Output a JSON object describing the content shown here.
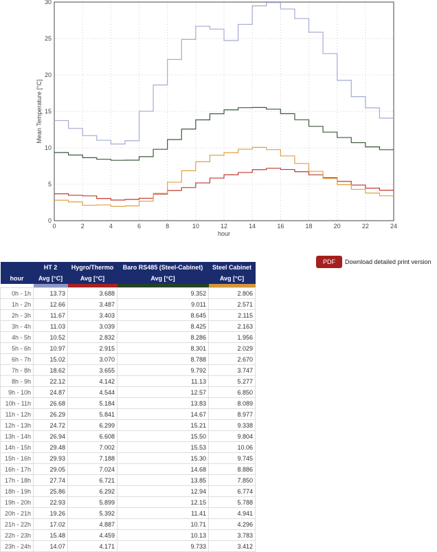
{
  "chart_data": {
    "type": "line",
    "step": true,
    "xlabel": "hour",
    "ylabel": "Mean Temperature [°C]",
    "xlim": [
      0,
      24
    ],
    "ylim": [
      0,
      30
    ],
    "xticks": [
      0,
      2,
      4,
      6,
      8,
      10,
      12,
      14,
      16,
      18,
      20,
      22,
      24
    ],
    "yticks": [
      0,
      5,
      10,
      15,
      20,
      25,
      30
    ],
    "grid": true,
    "series": [
      {
        "name": "HT 2",
        "color": "#a3abd3",
        "values": [
          13.73,
          12.66,
          11.67,
          11.03,
          10.52,
          10.97,
          15.02,
          18.62,
          22.12,
          24.87,
          26.68,
          26.29,
          24.72,
          26.94,
          29.48,
          29.93,
          29.05,
          27.74,
          25.86,
          22.93,
          19.26,
          17.02,
          15.48,
          14.07
        ]
      },
      {
        "name": "Hygro/Thermo",
        "color": "#c0392b",
        "values": [
          3.688,
          3.487,
          3.403,
          3.039,
          2.832,
          2.915,
          3.07,
          3.655,
          4.142,
          4.544,
          5.184,
          5.841,
          6.299,
          6.608,
          7.002,
          7.188,
          7.024,
          6.721,
          6.292,
          5.899,
          5.392,
          4.887,
          4.459,
          4.171
        ]
      },
      {
        "name": "Baro RS485 (Steel-Cabinet)",
        "color": "#3a5a3a",
        "values": [
          9.352,
          9.011,
          8.645,
          8.425,
          8.286,
          8.301,
          8.788,
          9.792,
          11.13,
          12.57,
          13.83,
          14.67,
          15.21,
          15.5,
          15.53,
          15.3,
          14.68,
          13.85,
          12.94,
          12.15,
          11.41,
          10.71,
          10.13,
          9.733
        ]
      },
      {
        "name": "Steel Cabinet",
        "color": "#e0a040",
        "values": [
          2.806,
          2.571,
          2.115,
          2.163,
          1.956,
          2.029,
          2.67,
          3.747,
          5.277,
          6.85,
          8.089,
          8.977,
          9.338,
          9.804,
          10.06,
          9.745,
          8.886,
          7.85,
          6.774,
          5.788,
          4.941,
          4.296,
          3.783,
          3.412
        ]
      }
    ]
  },
  "pdf": {
    "button": "PDF",
    "label": "Download detailed print version"
  },
  "table": {
    "hour_header": "hour",
    "columns": [
      {
        "name": "HT 2",
        "unit": "Avg [°C]",
        "color": "#8b96c2"
      },
      {
        "name": "Hygro/Thermo",
        "unit": "Avg [°C]",
        "color": "#a82020"
      },
      {
        "name": "Baro RS485 (Steel-Cabinet)",
        "unit": "Avg [°C]",
        "color": "#244324"
      },
      {
        "name": "Steel Cabinet",
        "unit": "Avg [°C]",
        "color": "#d4963a"
      }
    ],
    "rows": [
      [
        "0h - 1h",
        "13.73",
        "3.688",
        "9.352",
        "2.806"
      ],
      [
        "1h - 2h",
        "12.66",
        "3.487",
        "9.011",
        "2.571"
      ],
      [
        "2h - 3h",
        "11.67",
        "3.403",
        "8.645",
        "2.115"
      ],
      [
        "3h - 4h",
        "11.03",
        "3.039",
        "8.425",
        "2.163"
      ],
      [
        "4h - 5h",
        "10.52",
        "2.832",
        "8.286",
        "1.956"
      ],
      [
        "5h - 6h",
        "10.97",
        "2.915",
        "8.301",
        "2.029"
      ],
      [
        "6h - 7h",
        "15.02",
        "3.070",
        "8.788",
        "2.670"
      ],
      [
        "7h - 8h",
        "18.62",
        "3.655",
        "9.792",
        "3.747"
      ],
      [
        "8h - 9h",
        "22.12",
        "4.142",
        "11.13",
        "5.277"
      ],
      [
        "9h - 10h",
        "24.87",
        "4.544",
        "12.57",
        "6.850"
      ],
      [
        "10h - 11h",
        "26.68",
        "5.184",
        "13.83",
        "8.089"
      ],
      [
        "11h - 12h",
        "26.29",
        "5.841",
        "14.67",
        "8.977"
      ],
      [
        "12h - 13h",
        "24.72",
        "6.299",
        "15.21",
        "9.338"
      ],
      [
        "13h - 14h",
        "26.94",
        "6.608",
        "15.50",
        "9.804"
      ],
      [
        "14h - 15h",
        "29.48",
        "7.002",
        "15.53",
        "10.06"
      ],
      [
        "15h - 16h",
        "29.93",
        "7.188",
        "15.30",
        "9.745"
      ],
      [
        "16h - 17h",
        "29.05",
        "7.024",
        "14.68",
        "8.886"
      ],
      [
        "17h - 18h",
        "27.74",
        "6.721",
        "13.85",
        "7.850"
      ],
      [
        "18h - 19h",
        "25.86",
        "6.292",
        "12.94",
        "6.774"
      ],
      [
        "19h - 20h",
        "22.93",
        "5.899",
        "12.15",
        "5.788"
      ],
      [
        "20h - 21h",
        "19.26",
        "5.392",
        "11.41",
        "4.941"
      ],
      [
        "21h - 22h",
        "17.02",
        "4.887",
        "10.71",
        "4.296"
      ],
      [
        "22h - 23h",
        "15.48",
        "4.459",
        "10.13",
        "3.783"
      ],
      [
        "23h - 24h",
        "14.07",
        "4.171",
        "9.733",
        "3.412"
      ]
    ]
  }
}
